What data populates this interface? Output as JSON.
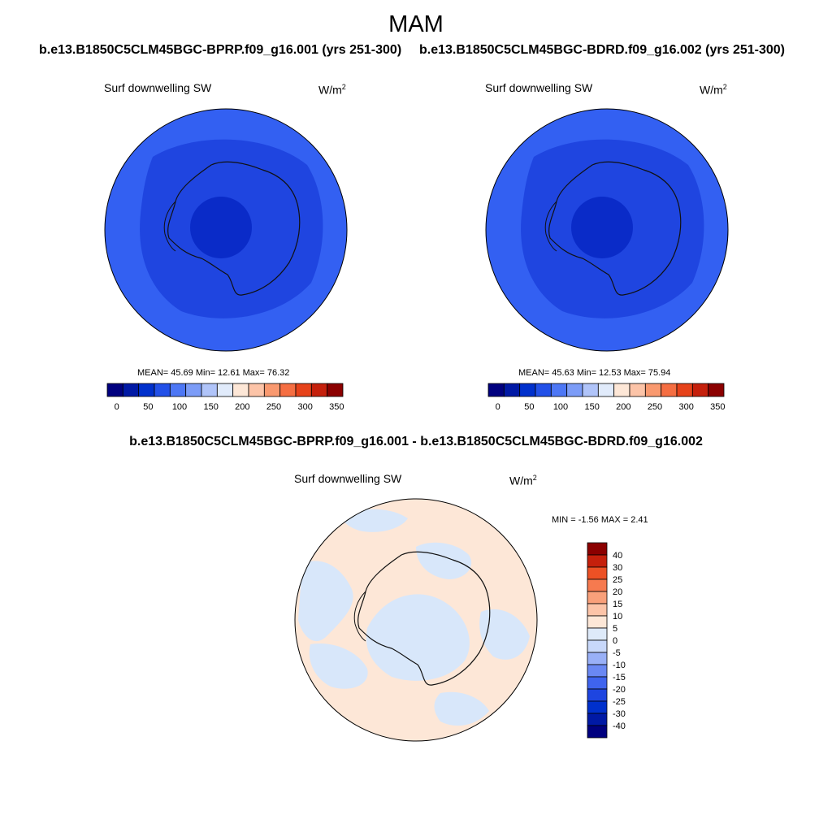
{
  "title": "MAM",
  "panels": [
    {
      "case_title": "b.e13.B1850C5CLM45BGC-BPRP.f09_g16.001 (yrs 251-300)",
      "variable": "Surf downwelling SW",
      "units": "W/m",
      "units_sup": "2",
      "stats": "MEAN=  45.69   Min=  12.61   Max=  76.32"
    },
    {
      "case_title": "b.e13.B1850C5CLM45BGC-BDRD.f09_g16.002 (yrs 251-300)",
      "variable": "Surf downwelling SW",
      "units": "W/m",
      "units_sup": "2",
      "stats": "MEAN=  45.63   Min=  12.53   Max=  75.94"
    }
  ],
  "difference": {
    "title": "b.e13.B1850C5CLM45BGC-BPRP.f09_g16.001 - b.e13.B1850C5CLM45BGC-BDRD.f09_g16.002",
    "variable": "Surf downwelling SW",
    "units": "W/m",
    "units_sup": "2",
    "stats": "MIN =  -1.56 MAX =   2.41"
  },
  "colors": {
    "abs_scale": [
      "#00007f",
      "#0019a5",
      "#0030cc",
      "#2250e8",
      "#4d77f5",
      "#7c9cf7",
      "#b0c4f9",
      "#e1ebfb",
      "#fde7d7",
      "#fcc4a8",
      "#f9996f",
      "#f56e42",
      "#e6421a",
      "#c5200c",
      "#8b0000"
    ],
    "diff_scale": [
      "#00007f",
      "#0019a5",
      "#0030cc",
      "#1e45e0",
      "#3f64ee",
      "#6a88f3",
      "#99b0f7",
      "#c8d8fa",
      "#deeaf9",
      "#fde7d7",
      "#fcc4a8",
      "#f9a07a",
      "#f67a4f",
      "#ec5125",
      "#c5200c",
      "#8b0000"
    ],
    "map_background": "#3360f2",
    "map_mid": "#1f45e0",
    "map_center": "#0a2bc8",
    "diff_positive": "#fde7d7",
    "diff_negative": "#d8e7fa"
  },
  "chart_data": [
    {
      "type": "heatmap",
      "title": "b.e13.B1850C5CLM45BGC-BPRP.f09_g16.001 (yrs 251-300)",
      "variable": "Surf downwelling SW",
      "units": "W/m2",
      "colorbar_ticks": [
        "0",
        "50",
        "100",
        "150",
        "200",
        "250",
        "300",
        "350"
      ],
      "mean": 45.69,
      "min": 12.61,
      "max": 76.32
    },
    {
      "type": "heatmap",
      "title": "b.e13.B1850C5CLM45BGC-BDRD.f09_g16.002 (yrs 251-300)",
      "variable": "Surf downwelling SW",
      "units": "W/m2",
      "colorbar_ticks": [
        "0",
        "50",
        "100",
        "150",
        "200",
        "250",
        "300",
        "350"
      ],
      "mean": 45.63,
      "min": 12.53,
      "max": 75.94
    },
    {
      "type": "heatmap",
      "title": "b.e13.B1850C5CLM45BGC-BPRP.f09_g16.001 - b.e13.B1850C5CLM45BGC-BDRD.f09_g16.002",
      "variable": "Surf downwelling SW",
      "units": "W/m2",
      "colorbar_ticks": [
        "40",
        "30",
        "25",
        "20",
        "15",
        "10",
        "5",
        "0",
        "-5",
        "-10",
        "-15",
        "-20",
        "-25",
        "-30",
        "-40"
      ],
      "min": -1.56,
      "max": 2.41
    }
  ]
}
